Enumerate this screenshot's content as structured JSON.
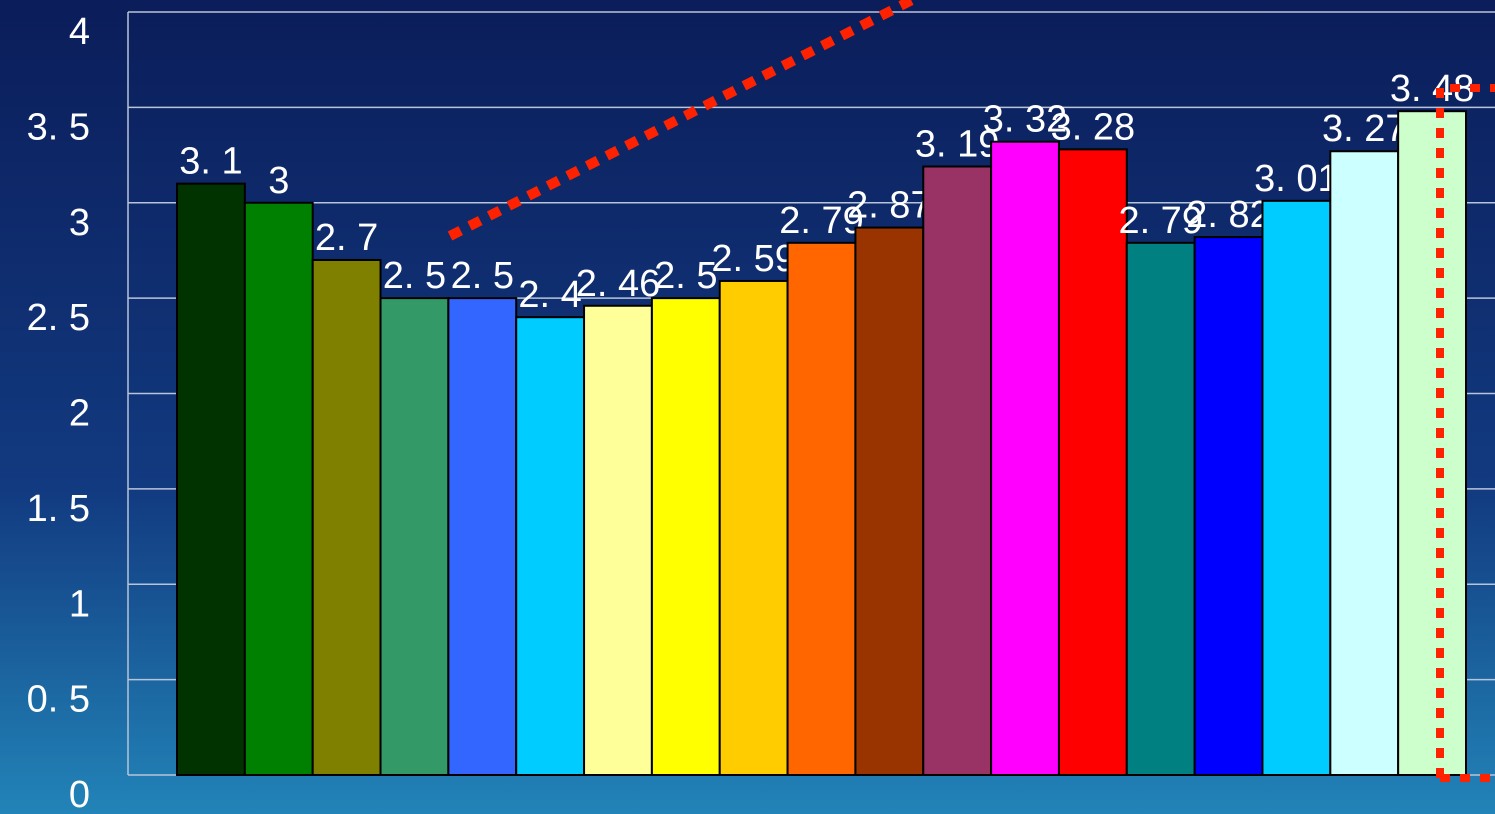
{
  "chart_data": {
    "type": "bar",
    "values": [
      3.1,
      3,
      2.7,
      2.5,
      2.5,
      2.4,
      2.46,
      2.5,
      2.59,
      2.79,
      2.87,
      3.19,
      3.32,
      3.28,
      2.79,
      2.82,
      3.01,
      3.27,
      3.48
    ],
    "value_labels": [
      "3. 1",
      "3",
      "2. 7",
      "2. 5",
      "2. 5",
      "2. 4",
      "2. 46",
      "2. 5",
      "2. 59",
      "2. 79",
      "2. 87",
      "3. 19",
      "3. 32",
      "3. 28",
      "2. 79",
      "2. 82",
      "3. 01",
      "3. 27",
      "3. 48"
    ],
    "colors": [
      "#003300",
      "#008000",
      "#808000",
      "#339966",
      "#3366ff",
      "#00ccff",
      "#ffff99",
      "#ffff00",
      "#ffcc00",
      "#ff6600",
      "#993300",
      "#993366",
      "#ff00ff",
      "#ff0000",
      "#008080",
      "#0000ff",
      "#00ccff",
      "#ccffff",
      "#ccffcc"
    ],
    "ylim": [
      0,
      4
    ],
    "yticks": [
      0,
      {
        "value": 0.5,
        "label": "0. 5"
      },
      1,
      {
        "value": 1.5,
        "label": "1. 5"
      },
      2,
      {
        "value": 2.5,
        "label": "2. 5"
      },
      3,
      {
        "value": 3.5,
        "label": "3. 5"
      },
      4
    ],
    "grid": true
  }
}
